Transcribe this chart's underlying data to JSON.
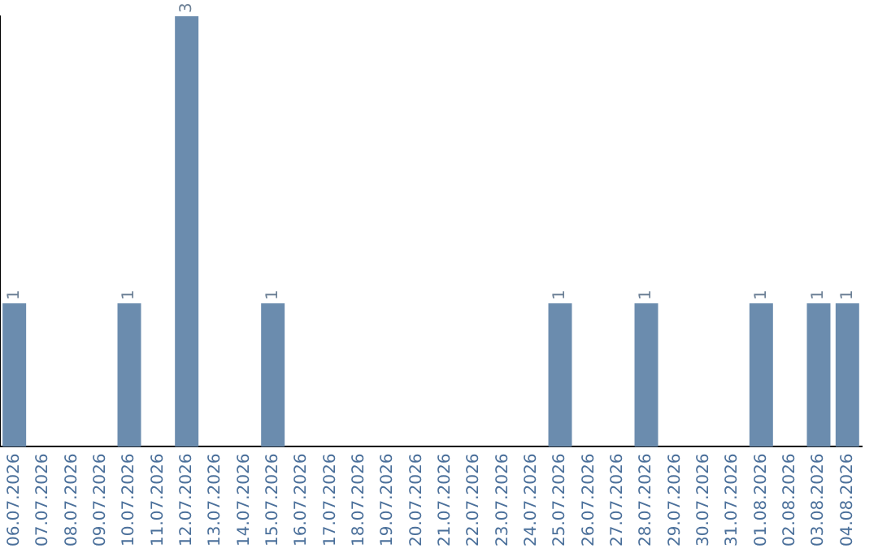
{
  "chart_data": {
    "type": "bar",
    "categories": [
      "06.07.2026",
      "07.07.2026",
      "08.07.2026",
      "09.07.2026",
      "10.07.2026",
      "11.07.2026",
      "12.07.2026",
      "13.07.2026",
      "14.07.2026",
      "15.07.2026",
      "16.07.2026",
      "17.07.2026",
      "18.07.2026",
      "19.07.2026",
      "20.07.2026",
      "21.07.2026",
      "22.07.2026",
      "23.07.2026",
      "24.07.2026",
      "25.07.2026",
      "26.07.2026",
      "27.07.2026",
      "28.07.2026",
      "29.07.2026",
      "30.07.2026",
      "31.07.2026",
      "01.08.2026",
      "02.08.2026",
      "03.08.2026",
      "04.08.2026"
    ],
    "values": [
      1,
      0,
      0,
      0,
      1,
      0,
      3,
      0,
      0,
      1,
      0,
      0,
      0,
      0,
      0,
      0,
      0,
      0,
      0,
      1,
      0,
      0,
      1,
      0,
      0,
      0,
      1,
      0,
      1,
      1
    ],
    "value_labels": [
      "1",
      null,
      null,
      null,
      "1",
      null,
      "3",
      null,
      null,
      "1",
      null,
      null,
      null,
      null,
      null,
      null,
      null,
      null,
      null,
      "1",
      null,
      null,
      "1",
      null,
      null,
      null,
      "1",
      null,
      "1",
      "1"
    ],
    "color": "#6b8cae",
    "grid": false,
    "legend": false,
    "tick_labels": "x"
  }
}
